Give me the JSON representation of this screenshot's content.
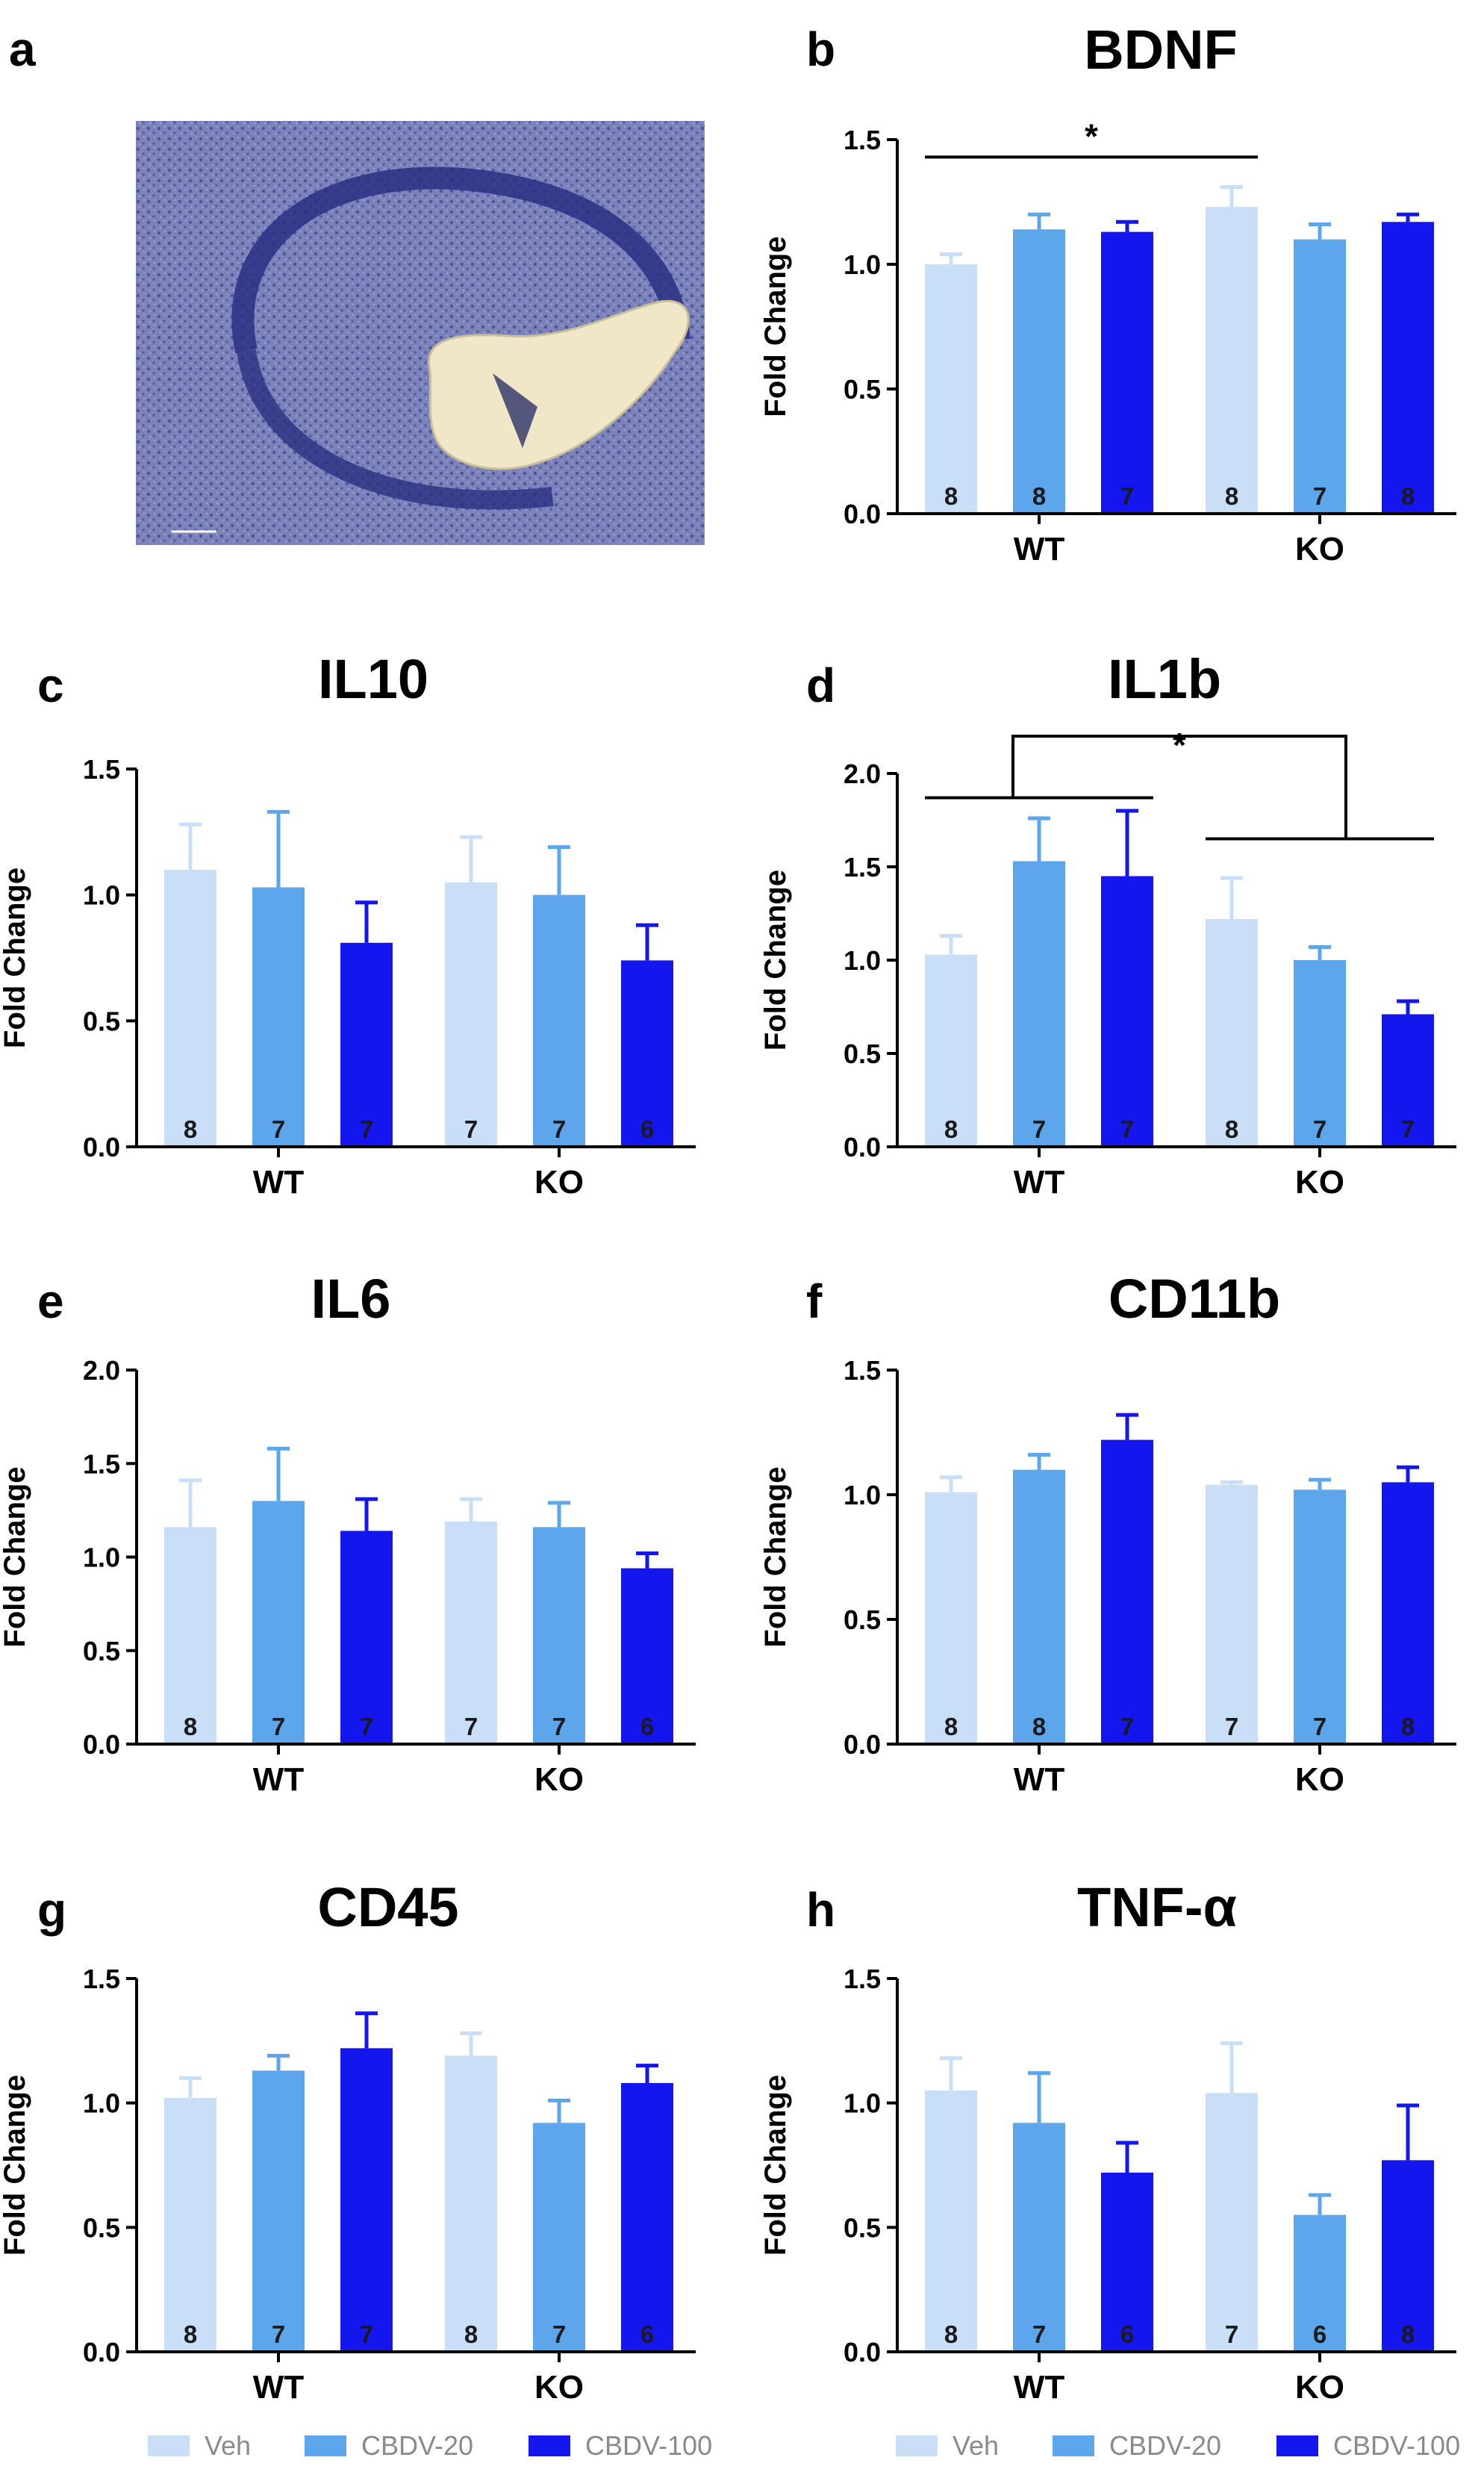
{
  "panel_a": {
    "letter": "a"
  },
  "legend": {
    "items": [
      {
        "label": "Veh",
        "color": "#c9dff7"
      },
      {
        "label": "CBDV-20",
        "color": "#5ea6ec"
      },
      {
        "label": "CBDV-100",
        "color": "#1416ee"
      }
    ]
  },
  "colors": {
    "veh": "#c9dff7",
    "cbdv20": "#5ea6ec",
    "cbdv100": "#1416ee",
    "axis": "#000000"
  },
  "chart_data": [
    {
      "id": "b",
      "letter": "b",
      "type": "bar",
      "title": "BDNF",
      "ylabel": "Fold Change",
      "ylim": [
        0,
        1.5
      ],
      "yticks": [
        "0.0",
        "0.5",
        "1.0",
        "1.5"
      ],
      "categories": [
        "WT",
        "KO"
      ],
      "series": [
        {
          "name": "Veh",
          "values": [
            1.0,
            1.23
          ],
          "errors": [
            0.04,
            0.08
          ],
          "n": [
            "8",
            "8"
          ]
        },
        {
          "name": "CBDV-20",
          "values": [
            1.14,
            1.1
          ],
          "errors": [
            0.06,
            0.06
          ],
          "n": [
            "8",
            "7"
          ]
        },
        {
          "name": "CBDV-100",
          "values": [
            1.13,
            1.17
          ],
          "errors": [
            0.04,
            0.03
          ],
          "n": [
            "7",
            "8"
          ]
        }
      ],
      "annotations": [
        {
          "type": "simple",
          "text": "*",
          "from": [
            0,
            0
          ],
          "to": [
            1,
            0
          ],
          "level": 1.43
        }
      ]
    },
    {
      "id": "c",
      "letter": "c",
      "type": "bar",
      "title": "IL10",
      "ylabel": "Fold Change",
      "ylim": [
        0,
        1.5
      ],
      "yticks": [
        "0.0",
        "0.5",
        "1.0",
        "1.5"
      ],
      "categories": [
        "WT",
        "KO"
      ],
      "series": [
        {
          "name": "Veh",
          "values": [
            1.1,
            1.05
          ],
          "errors": [
            0.18,
            0.18
          ],
          "n": [
            "8",
            "7"
          ]
        },
        {
          "name": "CBDV-20",
          "values": [
            1.03,
            1.0
          ],
          "errors": [
            0.3,
            0.19
          ],
          "n": [
            "7",
            "7"
          ]
        },
        {
          "name": "CBDV-100",
          "values": [
            0.81,
            0.74
          ],
          "errors": [
            0.16,
            0.14
          ],
          "n": [
            "7",
            "6"
          ]
        }
      ],
      "annotations": []
    },
    {
      "id": "d",
      "letter": "d",
      "type": "bar",
      "title": "IL1b",
      "ylabel": "Fold Change",
      "ylim": [
        0,
        2.0
      ],
      "yticks": [
        "0.0",
        "0.5",
        "1.0",
        "1.5",
        "2.0"
      ],
      "categories": [
        "WT",
        "KO"
      ],
      "series": [
        {
          "name": "Veh",
          "values": [
            1.03,
            1.22
          ],
          "errors": [
            0.1,
            0.22
          ],
          "n": [
            "8",
            "8"
          ]
        },
        {
          "name": "CBDV-20",
          "values": [
            1.53,
            1.0
          ],
          "errors": [
            0.23,
            0.07
          ],
          "n": [
            "7",
            "7"
          ]
        },
        {
          "name": "CBDV-100",
          "values": [
            1.45,
            0.71
          ],
          "errors": [
            0.35,
            0.07
          ],
          "n": [
            "7",
            "7"
          ]
        }
      ],
      "annotations": [
        {
          "type": "bracket",
          "text": "*",
          "left_level": 1.87,
          "right_level": 1.65,
          "top_level": 2.2
        }
      ]
    },
    {
      "id": "e",
      "letter": "e",
      "type": "bar",
      "title": "IL6",
      "ylabel": "Fold Change",
      "ylim": [
        0,
        2.0
      ],
      "yticks": [
        "0.0",
        "0.5",
        "1.0",
        "1.5",
        "2.0"
      ],
      "categories": [
        "WT",
        "KO"
      ],
      "series": [
        {
          "name": "Veh",
          "values": [
            1.16,
            1.19
          ],
          "errors": [
            0.25,
            0.12
          ],
          "n": [
            "8",
            "7"
          ]
        },
        {
          "name": "CBDV-20",
          "values": [
            1.3,
            1.16
          ],
          "errors": [
            0.28,
            0.13
          ],
          "n": [
            "7",
            "7"
          ]
        },
        {
          "name": "CBDV-100",
          "values": [
            1.14,
            0.94
          ],
          "errors": [
            0.17,
            0.08
          ],
          "n": [
            "7",
            "6"
          ]
        }
      ],
      "annotations": []
    },
    {
      "id": "f",
      "letter": "f",
      "type": "bar",
      "title": "CD11b",
      "ylabel": "Fold Change",
      "ylim": [
        0,
        1.5
      ],
      "yticks": [
        "0.0",
        "0.5",
        "1.0",
        "1.5"
      ],
      "categories": [
        "WT",
        "KO"
      ],
      "series": [
        {
          "name": "Veh",
          "values": [
            1.01,
            1.04
          ],
          "errors": [
            0.06,
            0.01
          ],
          "n": [
            "8",
            "7"
          ]
        },
        {
          "name": "CBDV-20",
          "values": [
            1.1,
            1.02
          ],
          "errors": [
            0.06,
            0.04
          ],
          "n": [
            "8",
            "7"
          ]
        },
        {
          "name": "CBDV-100",
          "values": [
            1.22,
            1.05
          ],
          "errors": [
            0.1,
            0.06
          ],
          "n": [
            "7",
            "8"
          ]
        }
      ],
      "annotations": []
    },
    {
      "id": "g",
      "letter": "g",
      "type": "bar",
      "title": "CD45",
      "ylabel": "Fold Change",
      "ylim": [
        0,
        1.5
      ],
      "yticks": [
        "0.0",
        "0.5",
        "1.0",
        "1.5"
      ],
      "categories": [
        "WT",
        "KO"
      ],
      "series": [
        {
          "name": "Veh",
          "values": [
            1.02,
            1.19
          ],
          "errors": [
            0.08,
            0.09
          ],
          "n": [
            "8",
            "8"
          ]
        },
        {
          "name": "CBDV-20",
          "values": [
            1.13,
            0.92
          ],
          "errors": [
            0.06,
            0.09
          ],
          "n": [
            "7",
            "7"
          ]
        },
        {
          "name": "CBDV-100",
          "values": [
            1.22,
            1.08
          ],
          "errors": [
            0.14,
            0.07
          ],
          "n": [
            "7",
            "6"
          ]
        }
      ],
      "annotations": []
    },
    {
      "id": "h",
      "letter": "h",
      "type": "bar",
      "title": "TNF-α",
      "ylabel": "Fold Change",
      "ylim": [
        0,
        1.5
      ],
      "yticks": [
        "0.0",
        "0.5",
        "1.0",
        "1.5"
      ],
      "categories": [
        "WT",
        "KO"
      ],
      "series": [
        {
          "name": "Veh",
          "values": [
            1.05,
            1.04
          ],
          "errors": [
            0.13,
            0.2
          ],
          "n": [
            "8",
            "7"
          ]
        },
        {
          "name": "CBDV-20",
          "values": [
            0.92,
            0.55
          ],
          "errors": [
            0.2,
            0.08
          ],
          "n": [
            "7",
            "6"
          ]
        },
        {
          "name": "CBDV-100",
          "values": [
            0.72,
            0.77
          ],
          "errors": [
            0.12,
            0.22
          ],
          "n": [
            "6",
            "8"
          ]
        }
      ],
      "annotations": []
    }
  ]
}
